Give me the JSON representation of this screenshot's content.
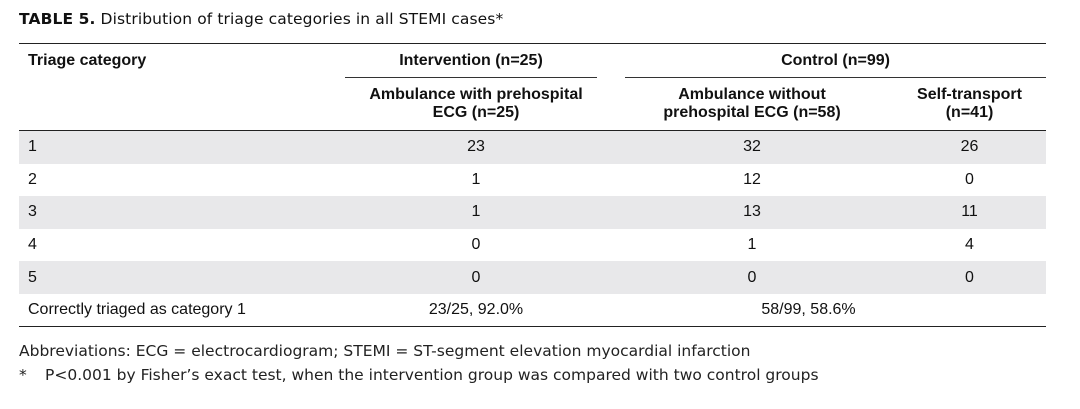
{
  "caption": {
    "label": "TABLE 5.",
    "text": "Distribution of triage categories in all STEMI cases*"
  },
  "table": {
    "header_category": "Triage category",
    "group_intervention": "Intervention (n=25)",
    "group_control": "Control (n=99)",
    "sub_ambulance_ecg_line1": "Ambulance with prehospital",
    "sub_ambulance_ecg_line2": "ECG (n=25)",
    "sub_ambulance_no_ecg_line1": "Ambulance without",
    "sub_ambulance_no_ecg_line2": "prehospital ECG (n=58)",
    "sub_self_line1": "Self-transport",
    "sub_self_line2": "(n=41)",
    "rows": [
      {
        "category": "1",
        "with_ecg": "23",
        "without_ecg": "32",
        "self": "26"
      },
      {
        "category": "2",
        "with_ecg": "1",
        "without_ecg": "12",
        "self": "0"
      },
      {
        "category": "3",
        "with_ecg": "1",
        "without_ecg": "13",
        "self": "11"
      },
      {
        "category": "4",
        "with_ecg": "0",
        "without_ecg": "1",
        "self": "4"
      },
      {
        "category": "5",
        "with_ecg": "0",
        "without_ecg": "0",
        "self": "0"
      }
    ],
    "summary": {
      "label": "Correctly triaged as category 1",
      "intervention": "23/25, 92.0%",
      "control": "58/99, 58.6%"
    }
  },
  "notes": {
    "abbreviations": "Abbreviations: ECG = electrocardiogram; STEMI = ST-segment elevation myocardial infarction",
    "footnote_mark": "*",
    "footnote": "P<0.001 by Fisher’s exact test, when the intervention group was compared with two control groups"
  }
}
